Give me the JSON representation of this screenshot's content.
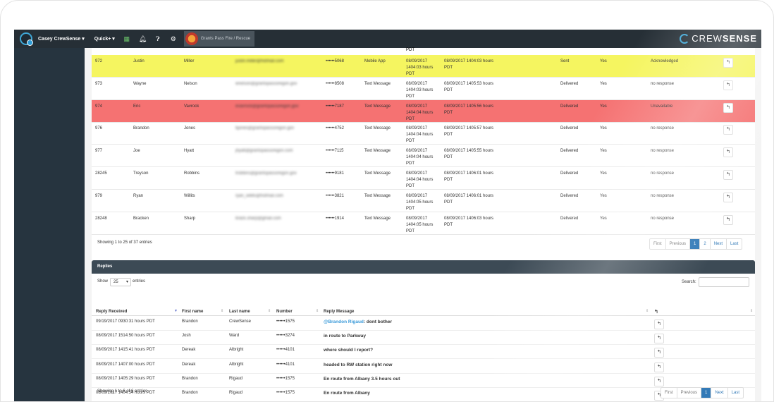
{
  "topbar": {
    "user_label": "Casey CrewSense ▾",
    "quick_label": "Quick+ ▾",
    "organization": "Grants Pass Fire / Rescue",
    "brand_part1": "CREW",
    "brand_part2": "SENSE",
    "icons": [
      "calendar-icon",
      "bell-icon",
      "help-icon",
      "gears-icon"
    ]
  },
  "notifications": {
    "top_partial_text": "PDT",
    "rows": [
      {
        "id": "972",
        "first": "Justin",
        "last": "Miller",
        "email": "justin.miller@hotmail.com",
        "phone": "••••••5068",
        "method": "Mobile App",
        "sent": [
          "08/09/2017",
          "1404:03 hours",
          "PDT"
        ],
        "updated": [
          "08/09/2017 1404:03 hours",
          "PDT"
        ],
        "status": "Sent",
        "flag": "Yes",
        "response": "Acknowledged",
        "highlight": "yellow"
      },
      {
        "id": "973",
        "first": "Wayne",
        "last": "Nelson",
        "email": "wnelson@grantspassoregon.gov",
        "phone": "••••••8508",
        "method": "Text Message",
        "sent": [
          "08/09/2017",
          "1404:03 hours",
          "PDT"
        ],
        "updated": [
          "08/09/2017 1405:53 hours",
          "PDT"
        ],
        "status": "Delivered",
        "flag": "Yes",
        "response": "no response",
        "highlight": ""
      },
      {
        "id": "974",
        "first": "Eric",
        "last": "Vavrock",
        "email": "evavrock@grantspassoregon.gov",
        "phone": "••••••7187",
        "method": "Text Message",
        "sent": [
          "08/09/2017",
          "1404:04 hours",
          "PDT"
        ],
        "updated": [
          "08/09/2017 1405:56 hours",
          "PDT"
        ],
        "status": "Delivered",
        "flag": "Yes",
        "response": "Unavailable",
        "highlight": "red"
      },
      {
        "id": "976",
        "first": "Brandon",
        "last": "Jones",
        "email": "bjones@grantspassoregon.gov",
        "phone": "••••••4752",
        "method": "Text Message",
        "sent": [
          "08/09/2017",
          "1404:04 hours",
          "PDT"
        ],
        "updated": [
          "08/09/2017 1405:57 hours",
          "PDT"
        ],
        "status": "Delivered",
        "flag": "Yes",
        "response": "no response",
        "highlight": ""
      },
      {
        "id": "977",
        "first": "Joe",
        "last": "Hyatt",
        "email": "jhyatt@grantspassoregon.com",
        "phone": "••••••7115",
        "method": "Text Message",
        "sent": [
          "08/09/2017",
          "1404:04 hours",
          "PDT"
        ],
        "updated": [
          "08/09/2017 1405:55 hours",
          "PDT"
        ],
        "status": "Delivered",
        "flag": "Yes",
        "response": "no response",
        "highlight": ""
      },
      {
        "id": "28245",
        "first": "Treyson",
        "last": "Robbins",
        "email": "trobbins@grantspassoregon.gov",
        "phone": "••••••9181",
        "method": "Text Message",
        "sent": [
          "08/09/2017",
          "1404:04 hours",
          "PDT"
        ],
        "updated": [
          "08/09/2017 1406:01 hours",
          "PDT"
        ],
        "status": "Delivered",
        "flag": "Yes",
        "response": "no response",
        "highlight": ""
      },
      {
        "id": "979",
        "first": "Ryan",
        "last": "Willits",
        "email": "ryan_willits@hotmail.com",
        "phone": "••••••3821",
        "method": "Text Message",
        "sent": [
          "08/09/2017",
          "1404:05 hours",
          "PDT"
        ],
        "updated": [
          "08/09/2017 1406:01 hours",
          "PDT"
        ],
        "status": "Delivered",
        "flag": "Yes",
        "response": "no response",
        "highlight": ""
      },
      {
        "id": "28248",
        "first": "Bracken",
        "last": "Sharp",
        "email": "brack.sharp@gmail.com",
        "phone": "••••••1914",
        "method": "Text Message",
        "sent": [
          "08/09/2017",
          "1404:05 hours",
          "PDT"
        ],
        "updated": [
          "08/09/2017 1406:03 hours",
          "PDT"
        ],
        "status": "Delivered",
        "flag": "Yes",
        "response": "no response",
        "highlight": ""
      }
    ],
    "showing": "Showing 1 to 25 of 37 entries",
    "pager": {
      "first": "First",
      "previous": "Previous",
      "page1": "1",
      "page2": "2",
      "next": "Next",
      "last": "Last"
    }
  },
  "replies": {
    "title": "Replies",
    "show_label": "Show",
    "page_size": "25",
    "entries_label": "entries",
    "search_label": "Search:",
    "columns": {
      "received": "Reply Received",
      "first": "First name",
      "last": "Last name",
      "number": "Number",
      "message": "Reply Message"
    },
    "rows": [
      {
        "received": "09/19/2017 0930:31 hours PDT",
        "first": "Brandon",
        "last": "CrewSense",
        "number": "••••••1575",
        "mention": "@Brandon Rigaud",
        "message": ": dont bother"
      },
      {
        "received": "08/09/2017 1514:50 hours PDT",
        "first": "Josh",
        "last": "Ward",
        "number": "••••••3274",
        "mention": "",
        "message": "in route to Parkway"
      },
      {
        "received": "08/09/2017 1415:41 hours PDT",
        "first": "Dereak",
        "last": "Albright",
        "number": "••••••4101",
        "mention": "",
        "message": "where should I report?"
      },
      {
        "received": "08/09/2017 1407:00 hours PDT",
        "first": "Dereak",
        "last": "Albright",
        "number": "••••••4101",
        "mention": "",
        "message": "headed to RW station right now"
      },
      {
        "received": "08/09/2017 1405:29 hours PDT",
        "first": "Brandon",
        "last": "Rigaud",
        "number": "••••••1575",
        "mention": "",
        "message": "En route from Albany 3.5 hours out"
      },
      {
        "received": "08/09/2017 1404:54 hours PDT",
        "first": "Brandon",
        "last": "Rigaud",
        "number": "••••••1575",
        "mention": "",
        "message": "En route from Albany"
      }
    ],
    "showing": "Showing 1 to 6 of 6 entries",
    "pager": {
      "first": "First",
      "previous": "Previous",
      "page1": "1",
      "next": "Next",
      "last": "Last"
    }
  },
  "colors": {
    "topbar": "#262f36",
    "sidebar": "#26343f",
    "highlight_yellow": "#f5f560",
    "highlight_red": "#f57272",
    "accent": "#337ab7"
  }
}
